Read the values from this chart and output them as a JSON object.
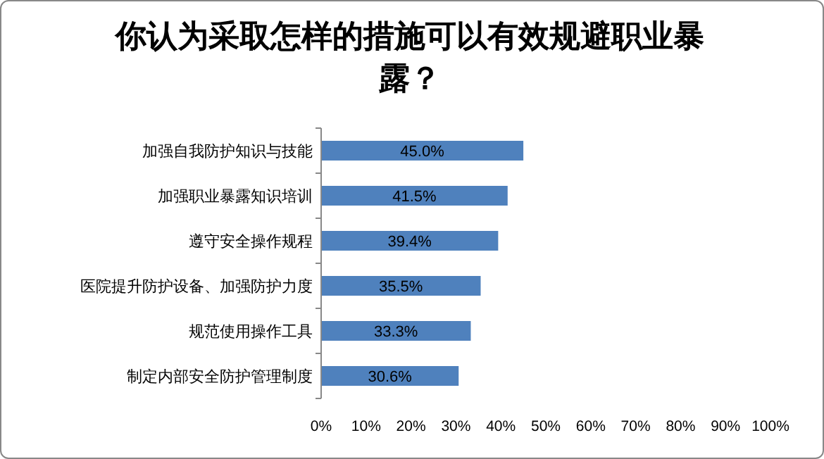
{
  "chart_data": {
    "type": "bar",
    "orientation": "horizontal",
    "title": "你认为采取怎样的措施可以有效规避职业暴露？",
    "categories": [
      "加强自我防护知识与技能",
      "加强职业暴露知识培训",
      "遵守安全操作规程",
      "医院提升防护设备、加强防护力度",
      "规范使用操作工具",
      "制定内部安全防护管理制度"
    ],
    "values": [
      45.0,
      41.5,
      39.4,
      35.5,
      33.3,
      30.6
    ],
    "value_labels": [
      "45.0%",
      "41.5%",
      "39.4%",
      "35.5%",
      "33.3%",
      "30.6%"
    ],
    "color": "#4f81bd",
    "xlim": [
      0,
      100
    ],
    "xticks": [
      {
        "value": 0,
        "label": "0%"
      },
      {
        "value": 10,
        "label": "10%"
      },
      {
        "value": 20,
        "label": "20%"
      },
      {
        "value": 30,
        "label": "30%"
      },
      {
        "value": 40,
        "label": "40%"
      },
      {
        "value": 50,
        "label": "50%"
      },
      {
        "value": 60,
        "label": "60%"
      },
      {
        "value": 70,
        "label": "70%"
      },
      {
        "value": 80,
        "label": "80%"
      },
      {
        "value": 90,
        "label": "90%"
      },
      {
        "value": 100,
        "label": "100%"
      }
    ],
    "grid": false
  }
}
